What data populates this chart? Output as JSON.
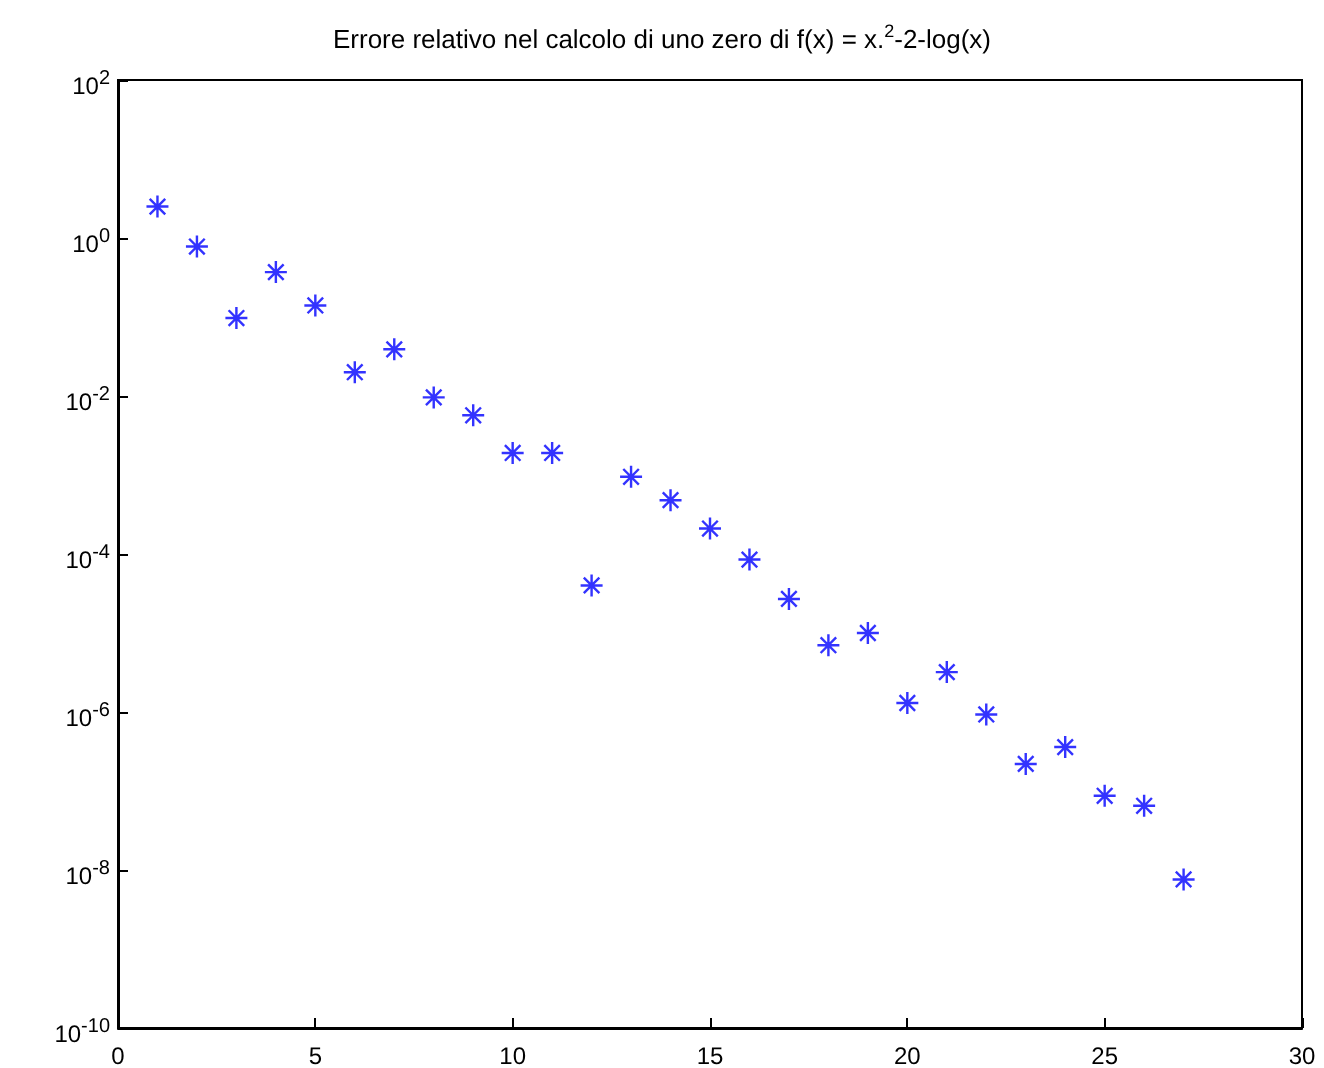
{
  "chart_data": {
    "type": "scatter",
    "title": "Errore relativo nel calcolo di uno zero di f(x) = x.$^{2}$-2-log(x)",
    "x": [
      1,
      2,
      3,
      4,
      5,
      6,
      7,
      8,
      9,
      10,
      11,
      12,
      13,
      14,
      15,
      16,
      17,
      18,
      19,
      20,
      21,
      22,
      23,
      24,
      25,
      26,
      27
    ],
    "series": [
      {
        "color": "#0000ff",
        "values": [
          2.5,
          0.78,
          0.097,
          0.37,
          0.14,
          0.02,
          0.039,
          0.0096,
          0.0057,
          0.0019,
          0.0019,
          4e-05,
          0.00095,
          0.00048,
          0.00021,
          8.5e-05,
          2.7e-05,
          7e-06,
          1e-05,
          1.3e-06,
          3.2e-06,
          9.3e-07,
          2.2e-07,
          3.6e-07,
          8.7e-08,
          6.5e-08,
          7.6e-09
        ]
      }
    ],
    "xlim": [
      0,
      30
    ],
    "xticks": [
      0,
      5,
      10,
      15,
      20,
      25,
      30
    ],
    "ylim": [
      1e-10,
      100
    ],
    "yticks": [
      {
        "value": 1e-10,
        "label": "10$^{-10}$"
      },
      {
        "value": 1e-08,
        "label": "10$^{-8}$"
      },
      {
        "value": 1e-06,
        "label": "10$^{-6}$"
      },
      {
        "value": 0.0001,
        "label": "10$^{-4}$"
      },
      {
        "value": 0.01,
        "label": "10$^{-2}$"
      },
      {
        "value": 1,
        "label": "10$^{0}$"
      },
      {
        "value": 100,
        "label": "10$^{2}$"
      }
    ],
    "log": "y",
    "grid": false,
    "marker": "star"
  }
}
